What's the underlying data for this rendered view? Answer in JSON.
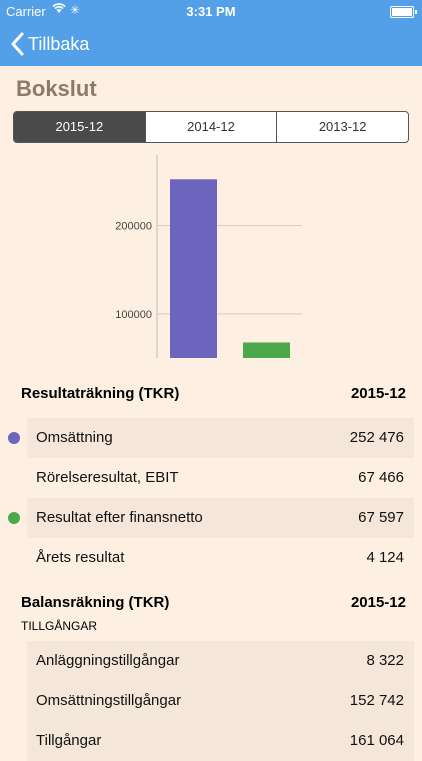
{
  "status_bar": {
    "carrier": "Carrier",
    "time": "3:31 PM"
  },
  "nav": {
    "back_label": "Tillbaka"
  },
  "page": {
    "title": "Bokslut"
  },
  "tabs": [
    {
      "label": "2015-12",
      "selected": true
    },
    {
      "label": "2014-12",
      "selected": false
    },
    {
      "label": "2013-12",
      "selected": false
    }
  ],
  "chart_data": {
    "type": "bar",
    "categories": [
      "Omsättning",
      "Resultat efter finansnetto"
    ],
    "values": [
      252476,
      67597
    ],
    "colors": [
      "#6b65be",
      "#4ba84b"
    ],
    "y_ticks": [
      "100000",
      "200000"
    ],
    "ylim": [
      50000,
      280000
    ],
    "grid": true
  },
  "income": {
    "header": "Resultaträkning (TKR)",
    "period": "2015-12",
    "rows": [
      {
        "label": "Omsättning",
        "value": "252 476",
        "dot": "#6b65be"
      },
      {
        "label": "Rörelseresultat, EBIT",
        "value": "67 466"
      },
      {
        "label": "Resultat efter finansnetto",
        "value": "67 597",
        "dot": "#4ba84b"
      },
      {
        "label": "Årets resultat",
        "value": "4 124"
      }
    ]
  },
  "balance": {
    "header": "Balansräkning (TKR)",
    "period": "2015-12",
    "subheader": "TILLGÅNGAR",
    "rows": [
      {
        "label": "Anläggningstillgångar",
        "value": "8 322"
      },
      {
        "label": "Omsättningstillgångar",
        "value": "152 742"
      },
      {
        "label": "Tillgångar",
        "value": "161 064"
      }
    ]
  }
}
